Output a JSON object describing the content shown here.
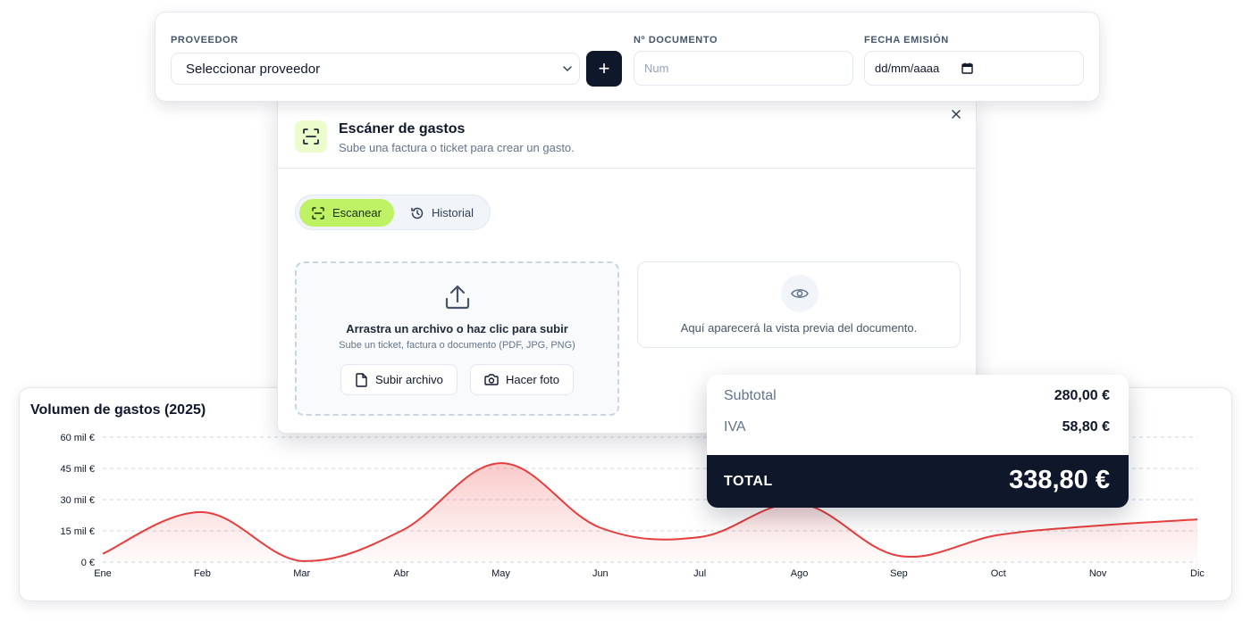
{
  "supplier_bar": {
    "proveedor_label": "PROVEEDOR",
    "proveedor_value": "Seleccionar proveedor",
    "add_label": "+",
    "documento_label": "Nº DOCUMENTO",
    "documento_placeholder": "Num",
    "fecha_label": "FECHA EMISIÓN",
    "fecha_value": "dd/mm/aaaa"
  },
  "scanner": {
    "title": "Escáner de gastos",
    "subtitle": "Sube una factura o ticket para crear un gasto.",
    "tabs": [
      {
        "label": "Escanear",
        "active": true
      },
      {
        "label": "Historial",
        "active": false
      }
    ],
    "dropzone": {
      "title": "Arrastra un archivo o haz clic para subir",
      "subtitle": "Sube un ticket, factura o documento (PDF, JPG, PNG)",
      "upload_button": "Subir archivo",
      "photo_button": "Hacer foto"
    },
    "preview_text": "Aquí aparecerá la vista previa del documento.",
    "accent_color": "#bef264"
  },
  "totals": {
    "subtotal_label": "Subtotal",
    "subtotal_value": "280,00 €",
    "iva_label": "IVA",
    "iva_value": "58,80 €",
    "total_label": "TOTAL",
    "total_value": "338,80 €"
  },
  "chart_data": {
    "type": "area",
    "title": "Volumen de gastos (2025)",
    "categories": [
      "Ene",
      "Feb",
      "Mar",
      "Abr",
      "May",
      "Jun",
      "Jul",
      "Ago",
      "Sep",
      "Oct",
      "Nov",
      "Dic"
    ],
    "values": [
      4000,
      24000,
      500,
      15000,
      47500,
      16500,
      12000,
      28000,
      3000,
      13000,
      17500,
      20500
    ],
    "ylim": [
      0,
      60000
    ],
    "yticks": [
      0,
      15000,
      30000,
      45000,
      60000
    ],
    "ytick_labels": [
      "0 €",
      "15 mil €",
      "30 mil €",
      "45 mil €",
      "60 mil €"
    ],
    "grid": true,
    "line_color": "#e53e3e"
  }
}
